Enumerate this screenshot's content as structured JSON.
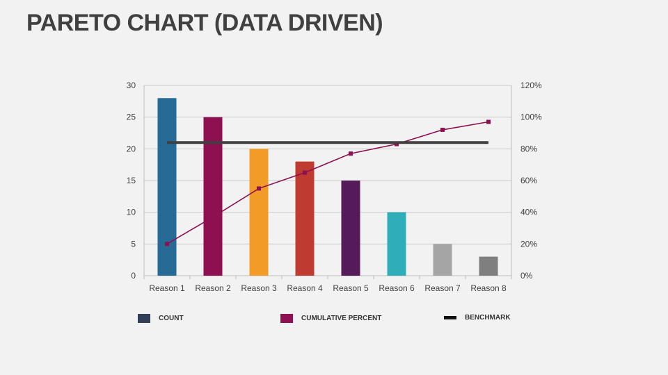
{
  "title": "PARETO CHART (DATA DRIVEN)",
  "colors": {
    "count_legend": "#333f57",
    "cumulative": "#8e1050",
    "benchmark": "#404040",
    "bars": [
      "#256b96",
      "#8e1050",
      "#f29b27",
      "#bf3a30",
      "#541a5a",
      "#2fadb9",
      "#a5a5a5",
      "#7f7f7f"
    ]
  },
  "legend": {
    "count": "COUNT",
    "cumulative": "CUMULATIVE PERCENT",
    "benchmark": "BENCHMARK"
  },
  "chart_data": {
    "type": "bar",
    "categories": [
      "Reason 1",
      "Reason 2",
      "Reason 3",
      "Reason 4",
      "Reason 5",
      "Reason 6",
      "Reason 7",
      "Reason 8"
    ],
    "series": [
      {
        "name": "COUNT",
        "type": "bar",
        "axis": "left",
        "values": [
          28,
          25,
          20,
          18,
          15,
          10,
          5,
          3
        ]
      },
      {
        "name": "CUMULATIVE PERCENT",
        "type": "line",
        "axis": "right",
        "values": [
          20,
          37,
          55,
          65,
          77,
          83,
          92,
          97
        ]
      },
      {
        "name": "BENCHMARK",
        "type": "line",
        "axis": "left",
        "values": [
          21,
          21,
          21,
          21,
          21,
          21,
          21,
          21
        ]
      }
    ],
    "ylim": [
      0,
      30
    ],
    "yticks": [
      "0",
      "5",
      "10",
      "15",
      "20",
      "25",
      "30"
    ],
    "y2lim": [
      0,
      120
    ],
    "y2ticks": [
      "0%",
      "20%",
      "40%",
      "60%",
      "80%",
      "100%",
      "120%"
    ],
    "grid": true,
    "legend_position": "bottom"
  }
}
